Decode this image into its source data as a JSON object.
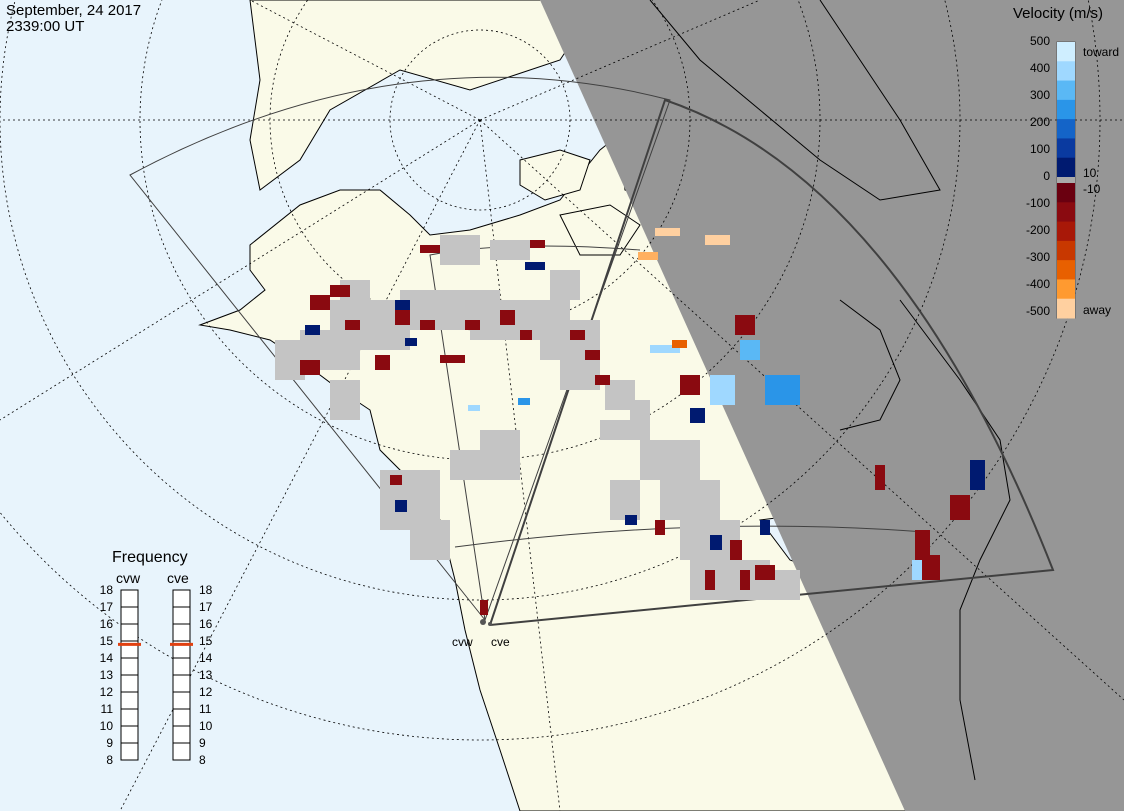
{
  "header": {
    "date": "September, 24 2017",
    "time": "2339:00 UT"
  },
  "velocity_scale": {
    "title": "Velocity (m/s)",
    "ticks": [
      "500",
      "400",
      "300",
      "200",
      "100",
      "0",
      "-100",
      "-200",
      "-300",
      "-400",
      "-500"
    ],
    "toward_label": "toward",
    "away_label": "away",
    "pos10": "10",
    "neg10": "-10",
    "colors_toward": [
      "#cfeeff",
      "#9fd8ff",
      "#5ab8f5",
      "#2a95e8",
      "#1464c8",
      "#0a3aa0",
      "#001a70"
    ],
    "colors_away": [
      "#6a0010",
      "#8a0a10",
      "#a81808",
      "#c83800",
      "#e86000",
      "#ff9a30",
      "#ffd0a0"
    ],
    "zero_color": "#aaaaaa"
  },
  "frequency_panel": {
    "title": "Frequency",
    "radar_left": "cvw",
    "radar_right": "cve",
    "ticks": [
      "18",
      "17",
      "16",
      "15",
      "14",
      "13",
      "12",
      "11",
      "10",
      "9",
      "8"
    ],
    "cvw_freq_mhz": 14.8,
    "cve_freq_mhz": 14.8,
    "marker_color": "#e04010"
  },
  "radars": [
    {
      "name": "cvw"
    },
    {
      "name": "cve"
    }
  ],
  "colors": {
    "ocean": "#e8f4fc",
    "land": "#fafae8",
    "night": "#969696",
    "ground_scatter": "#c4c4c4",
    "fov_line": "#404040"
  }
}
